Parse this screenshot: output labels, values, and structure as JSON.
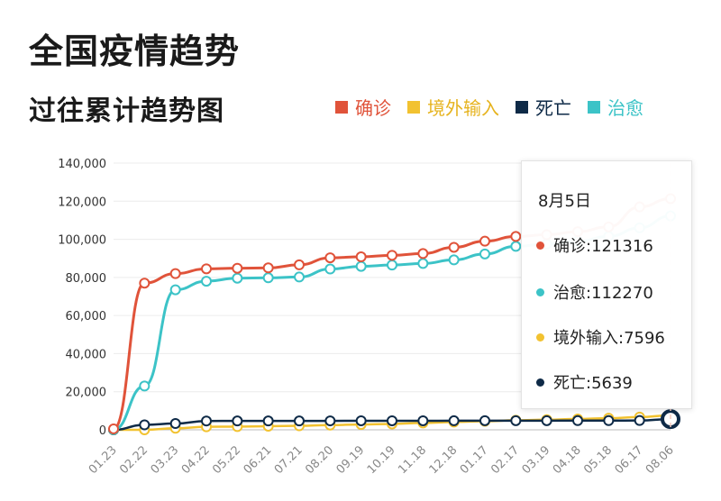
{
  "header": {
    "title": "全国疫情趋势",
    "subtitle": "过往累计趋势图"
  },
  "legend": [
    {
      "label": "确诊",
      "color": "#e0533a"
    },
    {
      "label": "境外输入",
      "color": "#f2c230"
    },
    {
      "label": "死亡",
      "color": "#0e2a47"
    },
    {
      "label": "治愈",
      "color": "#3cc3c7"
    }
  ],
  "tooltip": {
    "date": "8月5日",
    "rows": [
      {
        "text": "确诊:121316",
        "color": "#e0533a"
      },
      {
        "text": "治愈:112270",
        "color": "#3cc3c7"
      },
      {
        "text": "境外输入:7596",
        "color": "#f2c230"
      },
      {
        "text": "死亡:5639",
        "color": "#0e2a47"
      }
    ]
  },
  "chart_data": {
    "type": "line",
    "ylim": [
      0,
      140000
    ],
    "yticks": [
      "0",
      "20,000",
      "40,000",
      "60,000",
      "80,000",
      "100,000",
      "120,000",
      "140,000"
    ],
    "x_ticks": [
      "01.23",
      "02.22",
      "03.23",
      "04.22",
      "05.22",
      "06.21",
      "07.21",
      "08.20",
      "09.19",
      "10.19",
      "11.18",
      "12.18",
      "01.17",
      "02.17",
      "03.19",
      "04.18",
      "05.18",
      "06.17",
      "08.06"
    ],
    "grid": true,
    "series": [
      {
        "name": "确诊",
        "color": "#e0533a",
        "values": [
          500,
          77000,
          82000,
          84500,
          84800,
          85000,
          86600,
          90300,
          90800,
          91600,
          92500,
          95800,
          99000,
          101500,
          102400,
          104000,
          106500,
          117000,
          121316
        ]
      },
      {
        "name": "治愈",
        "color": "#3cc3c7",
        "values": [
          30,
          23000,
          73500,
          78000,
          79600,
          79800,
          80200,
          84400,
          85800,
          86500,
          87300,
          89200,
          92300,
          96300,
          97500,
          99000,
          101500,
          106000,
          112270
        ]
      },
      {
        "name": "境外输入",
        "color": "#f2c230",
        "values": [
          0,
          0,
          800,
          1600,
          1700,
          1900,
          2100,
          2500,
          2800,
          3100,
          3600,
          4100,
          4500,
          5000,
          5300,
          5700,
          6100,
          6700,
          7596
        ]
      },
      {
        "name": "死亡",
        "color": "#0e2a47",
        "values": [
          20,
          2600,
          3300,
          4640,
          4645,
          4645,
          4650,
          4700,
          4740,
          4740,
          4740,
          4760,
          4800,
          4800,
          4800,
          4840,
          4850,
          4900,
          5639
        ]
      }
    ]
  }
}
